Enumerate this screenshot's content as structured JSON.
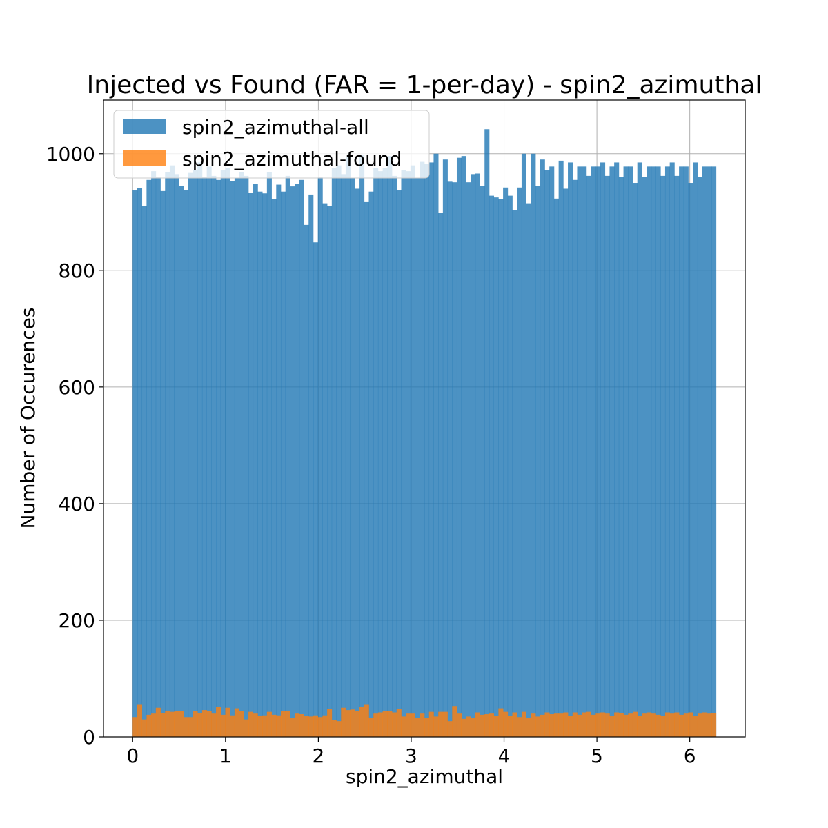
{
  "chart_data": {
    "type": "bar",
    "title": "Injected vs Found (FAR = 1-per-day) - spin2_azimuthal",
    "xlabel": "spin2_azimuthal",
    "ylabel": "Number of Occurences",
    "xlim": [
      -0.314,
      6.597
    ],
    "ylim": [
      0,
      1092
    ],
    "xticks": [
      0,
      1,
      2,
      3,
      4,
      5,
      6
    ],
    "yticks": [
      0,
      200,
      400,
      600,
      800,
      1000
    ],
    "grid": true,
    "legend": "upper-left",
    "bins": {
      "start": 0,
      "end": 6.2832,
      "count": 126
    },
    "series": [
      {
        "name": "spin2_azimuthal-all",
        "color": "#1f77b4",
        "opacity": 0.8,
        "values": [
          937,
          941,
          910,
          955,
          970,
          960,
          936,
          968,
          980,
          965,
          945,
          938,
          967,
          972,
          985,
          960,
          978,
          962,
          955,
          972,
          975,
          953,
          958,
          969,
          962,
          933,
          948,
          935,
          932,
          968,
          922,
          947,
          935,
          962,
          944,
          948,
          955,
          878,
          930,
          848,
          960,
          915,
          910,
          975,
          980,
          965,
          995,
          958,
          940,
          998,
          917,
          935,
          976,
          970,
          975,
          996,
          962,
          937,
          972,
          970,
          980,
          958,
          986,
          982,
          985,
          1000,
          898,
          990,
          952,
          951,
          993,
          996,
          951,
          965,
          966,
          945,
          1042,
          928,
          925,
          922,
          942,
          928,
          903,
          942,
          1000,
          915,
          1000,
          945,
          990,
          972,
          978,
          923,
          988,
          940,
          985,
          955,
          978,
          978,
          962,
          978,
          978,
          985,
          962,
          978,
          985,
          960,
          978,
          978,
          950,
          985,
          960,
          978,
          978,
          978,
          962,
          978,
          985,
          962,
          978,
          978,
          950,
          985,
          960,
          978,
          978,
          978
        ]
      },
      {
        "name": "spin2_azimuthal-found",
        "color": "#ff7f0e",
        "opacity": 0.8,
        "values": [
          34,
          55,
          30,
          38,
          40,
          50,
          41,
          45,
          43,
          44,
          45,
          34,
          34,
          44,
          41,
          46,
          44,
          40,
          52,
          38,
          50,
          37,
          49,
          44,
          30,
          43,
          40,
          36,
          37,
          43,
          38,
          37,
          44,
          45,
          32,
          40,
          39,
          36,
          35,
          37,
          34,
          37,
          48,
          29,
          27,
          50,
          46,
          47,
          44,
          52,
          55,
          33,
          40,
          42,
          44,
          44,
          42,
          48,
          35,
          40,
          40,
          32,
          40,
          33,
          43,
          35,
          43,
          43,
          27,
          53,
          40,
          31,
          35,
          32,
          42,
          38,
          39,
          40,
          36,
          49,
          43,
          36,
          42,
          34,
          43,
          32,
          40,
          35,
          38,
          42,
          39,
          40,
          40,
          42,
          36,
          42,
          38,
          42,
          43,
          38,
          40,
          42,
          40,
          36,
          42,
          41,
          38,
          40,
          43,
          36,
          40,
          42,
          40,
          38,
          36,
          42,
          40,
          42,
          38,
          40,
          42,
          36,
          40,
          42,
          40,
          41
        ]
      }
    ]
  }
}
